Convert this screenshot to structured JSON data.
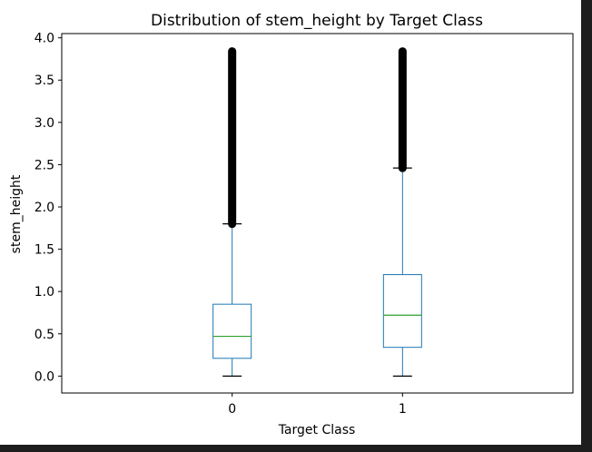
{
  "chart_data": {
    "type": "box",
    "title": "Distribution of stem_height by Target Class",
    "xlabel": "Target Class",
    "ylabel": "stem_height",
    "categories": [
      "0",
      "1"
    ],
    "ylim": [
      -0.2,
      4.05
    ],
    "yticks": [
      0.0,
      0.5,
      1.0,
      1.5,
      2.0,
      2.5,
      3.0,
      3.5,
      4.0
    ],
    "ytick_labels": [
      "0.0",
      "0.5",
      "1.0",
      "1.5",
      "2.0",
      "2.5",
      "3.0",
      "3.5",
      "4.0"
    ],
    "grid": false,
    "boxes": [
      {
        "category": "0",
        "whisker_low": 0.0,
        "q1": 0.21,
        "median": 0.47,
        "q3": 0.85,
        "whisker_high": 1.8,
        "outlier_range": [
          1.8,
          3.84
        ]
      },
      {
        "category": "1",
        "whisker_low": 0.0,
        "q1": 0.34,
        "median": 0.72,
        "q3": 1.2,
        "whisker_high": 2.46,
        "outlier_range": [
          2.46,
          3.84
        ]
      }
    ],
    "colors": {
      "box": "#1f77b4",
      "median": "#2ca02c",
      "outlier": "#000000",
      "axes": "#000000"
    }
  }
}
